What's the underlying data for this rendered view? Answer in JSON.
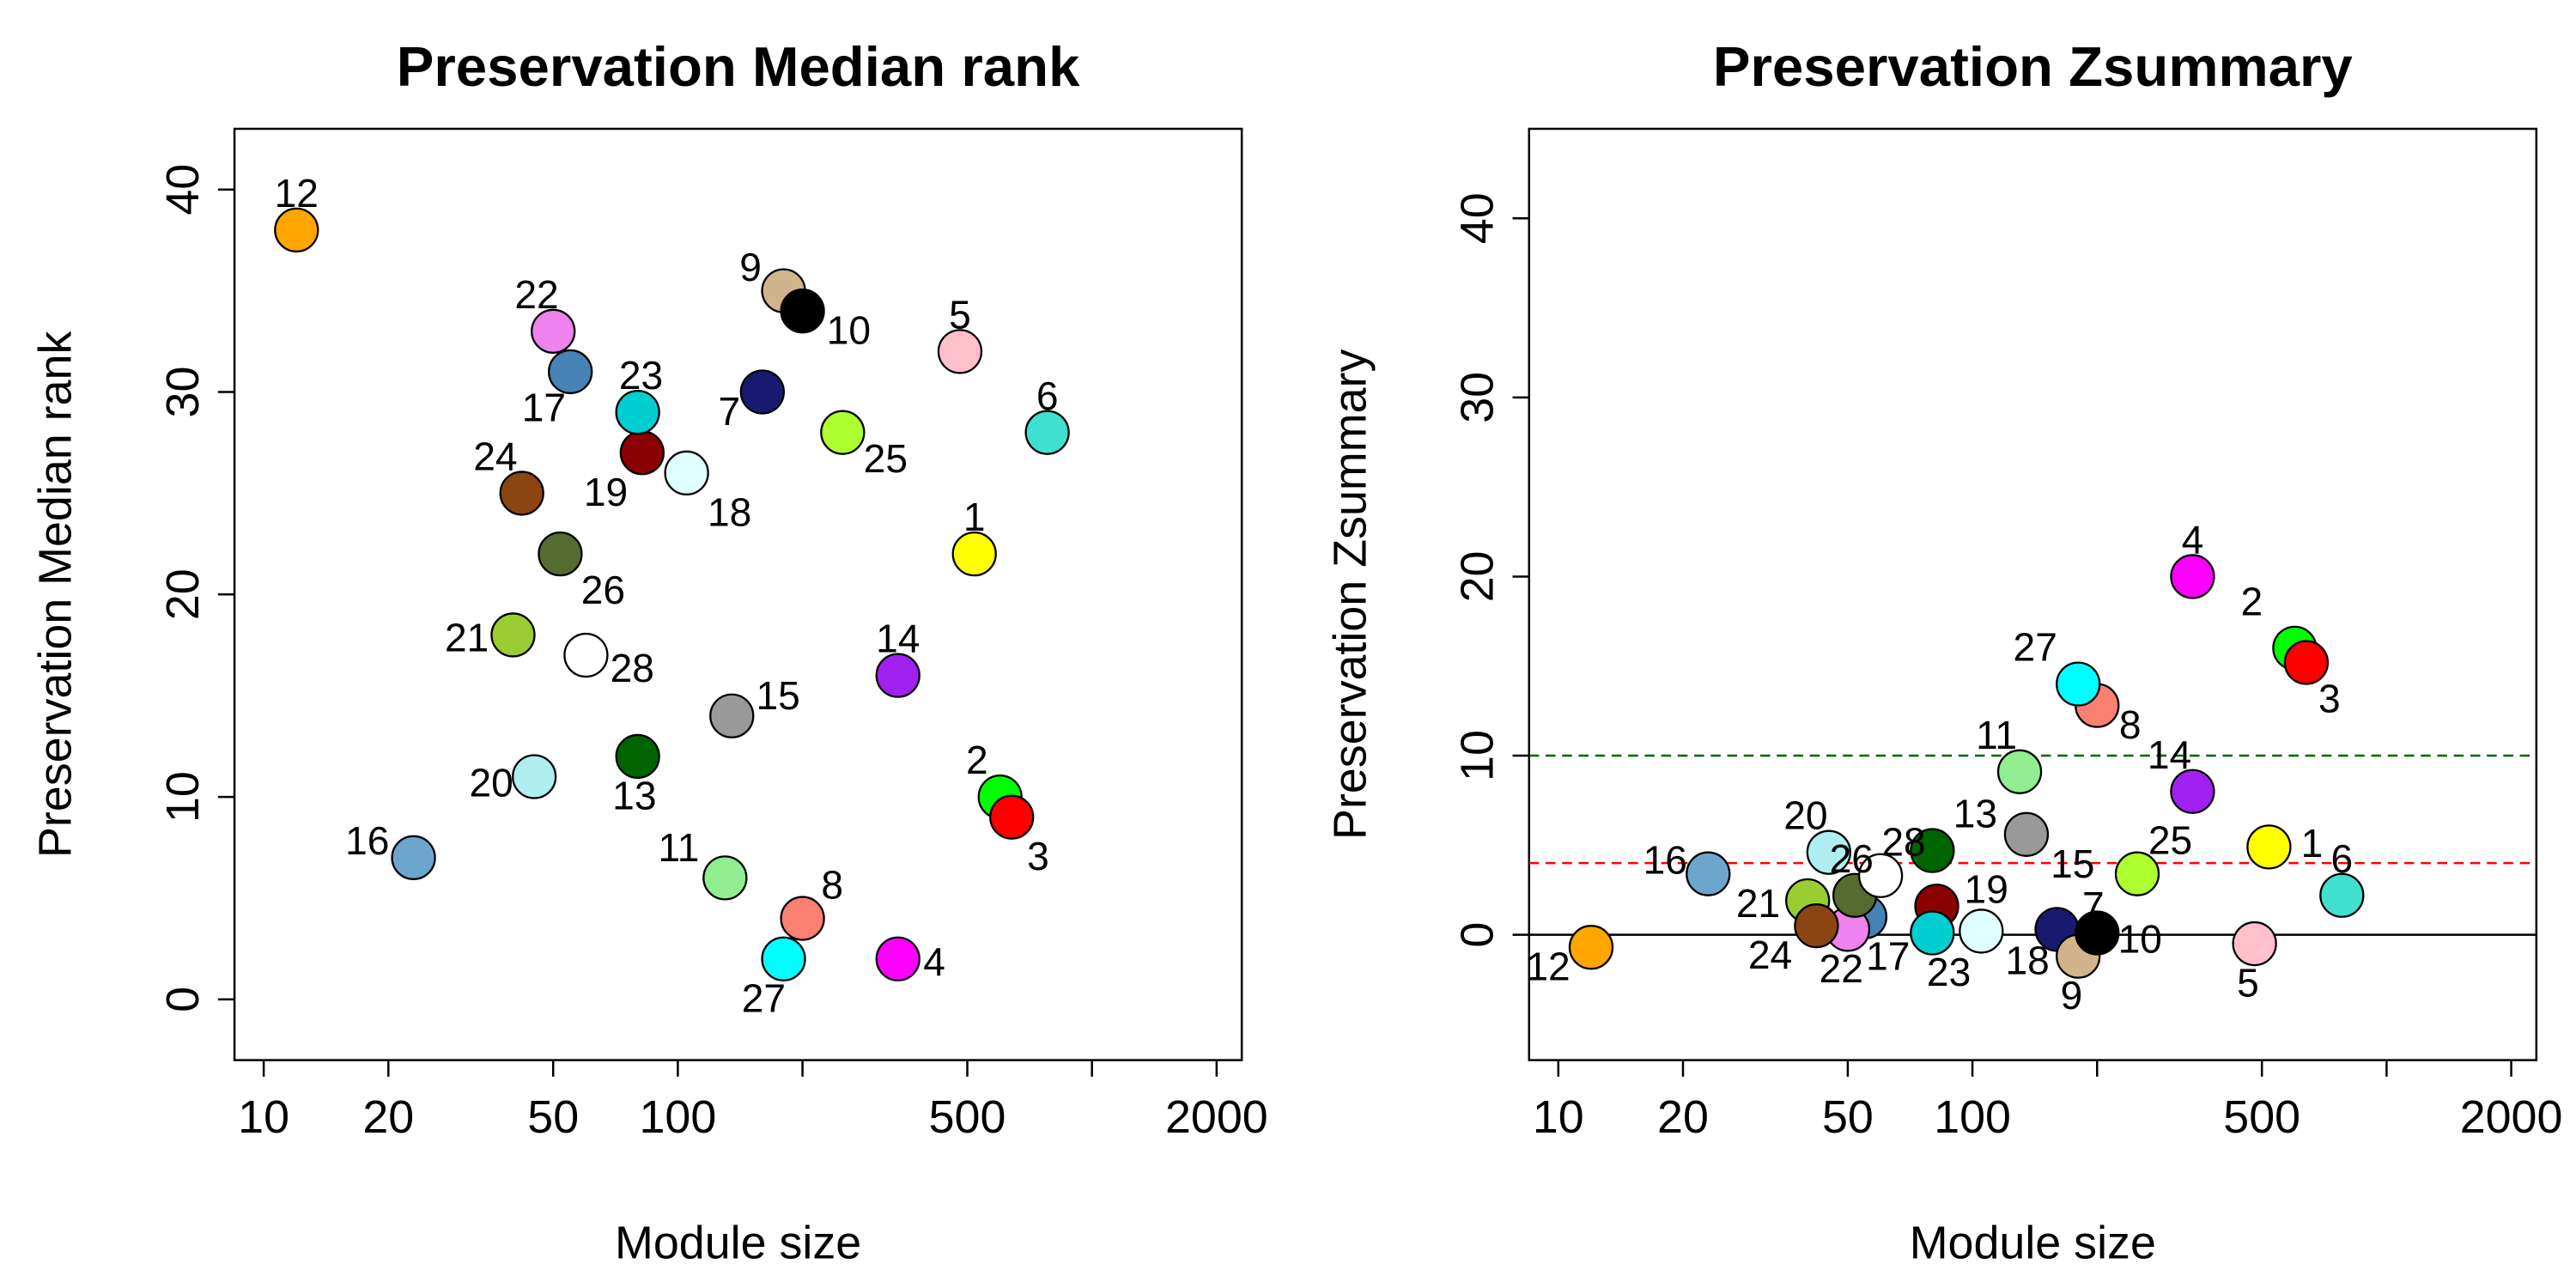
{
  "chart_data": [
    {
      "type": "scatter",
      "title": "Preservation Median rank",
      "xlabel": "Module size",
      "ylabel": "Preservation Median rank",
      "x_scale": "log",
      "xlim": [
        8.5,
        2300
      ],
      "ylim": [
        -3,
        43
      ],
      "x_ticks": [
        10,
        20,
        50,
        100,
        500,
        2000
      ],
      "x_tick_marks": [
        10,
        20,
        50,
        100,
        200,
        500,
        1000,
        2000
      ],
      "y_ticks": [
        0,
        10,
        20,
        30,
        40
      ],
      "points": [
        {
          "label": "1",
          "x": 520,
          "y": 22,
          "color": "#FFFF00"
        },
        {
          "label": "2",
          "x": 600,
          "y": 10,
          "color": "#00FF00"
        },
        {
          "label": "3",
          "x": 640,
          "y": 9,
          "color": "#FF0000"
        },
        {
          "label": "4",
          "x": 340,
          "y": 2,
          "color": "#FF00FF"
        },
        {
          "label": "5",
          "x": 480,
          "y": 32,
          "color": "#FFC0CB"
        },
        {
          "label": "6",
          "x": 780,
          "y": 28,
          "color": "#40E0D0"
        },
        {
          "label": "7",
          "x": 160,
          "y": 30,
          "color": "#191970"
        },
        {
          "label": "8",
          "x": 200,
          "y": 4,
          "color": "#FA8072"
        },
        {
          "label": "9",
          "x": 180,
          "y": 35,
          "color": "#D2B48C"
        },
        {
          "label": "10",
          "x": 200,
          "y": 34,
          "color": "#000000"
        },
        {
          "label": "11",
          "x": 130,
          "y": 6,
          "color": "#90EE90"
        },
        {
          "label": "12",
          "x": 12,
          "y": 38,
          "color": "#FFA500"
        },
        {
          "label": "13",
          "x": 80,
          "y": 12,
          "color": "#006400"
        },
        {
          "label": "14",
          "x": 340,
          "y": 16,
          "color": "#A020F0"
        },
        {
          "label": "15",
          "x": 135,
          "y": 14,
          "color": "#999999"
        },
        {
          "label": "16",
          "x": 23,
          "y": 7,
          "color": "#6CA6CD"
        },
        {
          "label": "17",
          "x": 55,
          "y": 31,
          "color": "#4682B4"
        },
        {
          "label": "18",
          "x": 105,
          "y": 26,
          "color": "#E0FFFF"
        },
        {
          "label": "19",
          "x": 82,
          "y": 27,
          "color": "#8B0000"
        },
        {
          "label": "20",
          "x": 45,
          "y": 11,
          "color": "#AFEEEE"
        },
        {
          "label": "21",
          "x": 40,
          "y": 18,
          "color": "#9ACD32"
        },
        {
          "label": "22",
          "x": 50,
          "y": 33,
          "color": "#EE82EE"
        },
        {
          "label": "23",
          "x": 80,
          "y": 29,
          "color": "#00CED1"
        },
        {
          "label": "24",
          "x": 42,
          "y": 25,
          "color": "#8B4513"
        },
        {
          "label": "25",
          "x": 250,
          "y": 28,
          "color": "#ADFF2F"
        },
        {
          "label": "26",
          "x": 52,
          "y": 22,
          "color": "#556B2F"
        },
        {
          "label": "27",
          "x": 180,
          "y": 2,
          "color": "#00FFFF"
        },
        {
          "label": "28",
          "x": 60,
          "y": 17,
          "color": "#FFFFFF"
        }
      ]
    },
    {
      "type": "scatter",
      "title": "Preservation Zsummary",
      "xlabel": "Module size",
      "ylabel": "Preservation Zsummary",
      "x_scale": "log",
      "xlim": [
        8.5,
        2300
      ],
      "ylim": [
        -7,
        45
      ],
      "x_ticks": [
        10,
        20,
        50,
        100,
        500,
        2000
      ],
      "x_tick_marks": [
        10,
        20,
        50,
        100,
        200,
        500,
        1000,
        2000
      ],
      "y_ticks": [
        0,
        10,
        20,
        30,
        40
      ],
      "reference_lines": [
        {
          "y": 0,
          "color": "#000000",
          "style": "solid"
        },
        {
          "y": 4,
          "color": "#FF0000",
          "style": "dashed"
        },
        {
          "y": 10,
          "color": "#006400",
          "style": "dashed"
        }
      ],
      "points": [
        {
          "label": "1",
          "x": 520,
          "y": 4.9,
          "color": "#FFFF00"
        },
        {
          "label": "2",
          "x": 600,
          "y": 16,
          "color": "#00FF00"
        },
        {
          "label": "3",
          "x": 640,
          "y": 15.2,
          "color": "#FF0000"
        },
        {
          "label": "4",
          "x": 340,
          "y": 20,
          "color": "#FF00FF"
        },
        {
          "label": "5",
          "x": 480,
          "y": -0.5,
          "color": "#FFC0CB"
        },
        {
          "label": "6",
          "x": 780,
          "y": 2.2,
          "color": "#40E0D0"
        },
        {
          "label": "7",
          "x": 160,
          "y": 0.3,
          "color": "#191970"
        },
        {
          "label": "8",
          "x": 200,
          "y": 12.8,
          "color": "#FA8072"
        },
        {
          "label": "9",
          "x": 180,
          "y": -1.2,
          "color": "#D2B48C"
        },
        {
          "label": "10",
          "x": 200,
          "y": 0.1,
          "color": "#000000"
        },
        {
          "label": "11",
          "x": 130,
          "y": 9.1,
          "color": "#90EE90"
        },
        {
          "label": "12",
          "x": 12,
          "y": -0.7,
          "color": "#FFA500"
        },
        {
          "label": "13",
          "x": 80,
          "y": 4.7,
          "color": "#006400"
        },
        {
          "label": "14",
          "x": 340,
          "y": 8,
          "color": "#A020F0"
        },
        {
          "label": "15",
          "x": 135,
          "y": 5.6,
          "color": "#999999"
        },
        {
          "label": "16",
          "x": 23,
          "y": 3.4,
          "color": "#6CA6CD"
        },
        {
          "label": "17",
          "x": 55,
          "y": 1,
          "color": "#4682B4"
        },
        {
          "label": "18",
          "x": 105,
          "y": 0.2,
          "color": "#E0FFFF"
        },
        {
          "label": "19",
          "x": 82,
          "y": 1.6,
          "color": "#8B0000"
        },
        {
          "label": "20",
          "x": 45,
          "y": 4.6,
          "color": "#AFEEEE"
        },
        {
          "label": "21",
          "x": 40,
          "y": 1.9,
          "color": "#9ACD32"
        },
        {
          "label": "22",
          "x": 50,
          "y": 0.3,
          "color": "#EE82EE"
        },
        {
          "label": "23",
          "x": 80,
          "y": 0.1,
          "color": "#00CED1"
        },
        {
          "label": "24",
          "x": 42,
          "y": 0.5,
          "color": "#8B4513"
        },
        {
          "label": "25",
          "x": 250,
          "y": 3.4,
          "color": "#ADFF2F"
        },
        {
          "label": "26",
          "x": 52,
          "y": 2.2,
          "color": "#556B2F"
        },
        {
          "label": "27",
          "x": 180,
          "y": 14,
          "color": "#00FFFF"
        },
        {
          "label": "28",
          "x": 60,
          "y": 3.3,
          "color": "#FFFFFF"
        }
      ]
    }
  ]
}
